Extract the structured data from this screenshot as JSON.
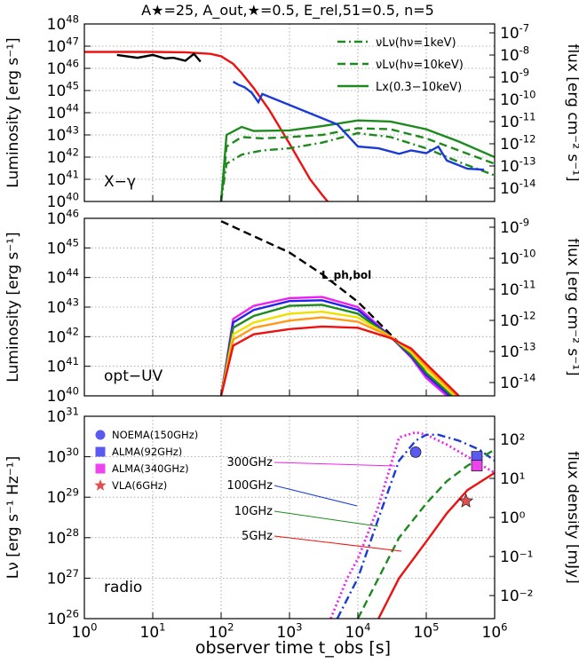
{
  "title": "A★=25, A_out,★=0.5, E_rel,51=0.5, n=5",
  "xlabel": "observer time t_obs [s]",
  "x_tick_exponents": [
    "0",
    "1",
    "2",
    "3",
    "4",
    "5",
    "6"
  ],
  "panels": [
    {
      "id": "xray",
      "label": "X−γ",
      "ylabel": "Luminosity [erg s⁻¹]",
      "y2label": "flux [erg cm⁻² s⁻¹]",
      "y_exps": [
        40,
        41,
        42,
        43,
        44,
        45,
        46,
        47,
        48
      ],
      "y2_exps": [
        "-14",
        "-13",
        "-12",
        "-11",
        "-10",
        "-9",
        "-8",
        "-7"
      ],
      "legend": [
        {
          "label": "νLν(hν=1keV)",
          "style": "dashdot",
          "color": "#1e8a1e"
        },
        {
          "label": "νLν(hν=10keV)",
          "style": "dash",
          "color": "#1e8a1e"
        },
        {
          "label": "Lx(0.3−10keV)",
          "style": "solid",
          "color": "#1e8a1e"
        }
      ]
    },
    {
      "id": "optuv",
      "label": "opt−UV",
      "ylabel": "Luminosity [erg s⁻¹]",
      "y2label": "flux [erg cm⁻² s⁻¹]",
      "y_exps": [
        40,
        41,
        42,
        43,
        44,
        45,
        46
      ],
      "y2_exps": [
        "-14",
        "-13",
        "-12",
        "-11",
        "-10",
        "-9"
      ],
      "annotation": "L_ph,bol"
    },
    {
      "id": "radio",
      "label": "radio",
      "ylabel": "Lν [erg s⁻¹ Hz⁻¹]",
      "y2label": "flux density [mJy]",
      "y_exps": [
        26,
        27,
        28,
        29,
        30,
        31
      ],
      "y2_ticks": [
        "10⁻²",
        "10⁻¹",
        "10⁰",
        "10¹",
        "10²"
      ],
      "freq_labels": [
        "300GHz",
        "100GHz",
        "10GHz",
        "5GHz"
      ],
      "legend": [
        {
          "label": "NOEMA(150GHz)",
          "marker": "circle",
          "color": "#5a5af0"
        },
        {
          "label": "ALMA(92GHz)",
          "marker": "square",
          "color": "#5a5af0"
        },
        {
          "label": "ALMA(340GHz)",
          "marker": "square",
          "color": "#ee44ee"
        },
        {
          "label": "VLA(6GHz)",
          "marker": "star",
          "color": "#e05050"
        }
      ]
    }
  ],
  "chart_data": [
    {
      "type": "line",
      "panel": "X−γ",
      "xscale": "log",
      "yscale": "log",
      "xlim": [
        1,
        1000000
      ],
      "ylim": [
        1e+40,
        1e+48
      ],
      "series": [
        {
          "name": "model (red)",
          "color": "#ee1111",
          "x": [
            1,
            10,
            30,
            70,
            100,
            150,
            200,
            300,
            500,
            1000,
            2000,
            3000,
            5000
          ],
          "y": [
            5.5e+46,
            5.5e+46,
            5.3e+46,
            4.5e+46,
            3.5e+46,
            1.6e+46,
            6e+45,
            1.3e+45,
            1.4e+44,
            4e+42,
            1e+41,
            2e+40,
            3e+39
          ]
        },
        {
          "name": "νLν(hν=1keV)",
          "color": "#1e8a1e",
          "dash": "dashdot",
          "x": [
            100,
            120,
            200,
            400,
            1000,
            3000,
            10000,
            30000,
            100000,
            300000,
            1000000
          ],
          "y": [
            1e+40,
            5e+41,
            1.3e+42,
            2e+42,
            2.5e+42,
            4.5e+42,
            1.2e+43,
            8e+42,
            2.5e+42,
            6e+41,
            1.5e+41
          ]
        },
        {
          "name": "νLν(hν=10keV)",
          "color": "#1e8a1e",
          "dash": "dash",
          "x": [
            100,
            120,
            200,
            400,
            1000,
            3000,
            10000,
            30000,
            100000,
            300000,
            1000000
          ],
          "y": [
            1e+40,
            3e+42,
            8e+42,
            7e+42,
            8e+42,
            1e+43,
            2e+43,
            1.8e+43,
            7e+42,
            2e+42,
            5e+41
          ]
        },
        {
          "name": "Lx(0.3−10keV)",
          "color": "#1e8a1e",
          "dash": "solid",
          "x": [
            100,
            120,
            200,
            300,
            1000,
            3000,
            10000,
            30000,
            100000,
            300000,
            1000000
          ],
          "y": [
            1e+40,
            1e+43,
            2.3e+43,
            1.5e+43,
            1.6e+43,
            2.5e+43,
            4.5e+43,
            4e+43,
            1.8e+43,
            5e+42,
            1e+42
          ]
        },
        {
          "name": "XRT data (blue)",
          "color": "#1a3ad6",
          "x": [
            150,
            180,
            220,
            280,
            350,
            400,
            5000,
            10000,
            20000,
            40000,
            60000,
            100000,
            150000,
            200000,
            400000,
            700000
          ],
          "y": [
            2.5e+45,
            1.8e+45,
            1.4e+45,
            8e+44,
            3e+44,
            7e+44,
            3e+43,
            3e+42,
            2.5e+42,
            1.4e+42,
            2e+42,
            1.5e+42,
            3e+42,
            7e+41,
            3e+41,
            2.7e+41
          ]
        },
        {
          "name": "BAT data (black)",
          "color": "#000000",
          "x": [
            3,
            6,
            10,
            15,
            20,
            30,
            40,
            50
          ],
          "y": [
            4e+46,
            3e+46,
            4e+46,
            2.8e+46,
            3e+46,
            2.2e+46,
            4.5e+46,
            2e+46
          ]
        }
      ]
    },
    {
      "type": "line",
      "panel": "opt−UV",
      "xscale": "log",
      "yscale": "log",
      "xlim": [
        1,
        1000000
      ],
      "ylim": [
        1e+40,
        1e+46
      ],
      "series": [
        {
          "name": "L_ph,bol",
          "color": "#000000",
          "dash": "dash",
          "x": [
            100,
            300,
            1000,
            3000,
            10000,
            30000,
            100000,
            300000
          ],
          "y": [
            8e+45,
            2.5e+45,
            7e+44,
            1.3e+44,
            1.5e+43,
            1.2e+42,
            8e+40,
            1e+40
          ]
        },
        {
          "name": "magenta",
          "color": "#ee22ee",
          "x": [
            100,
            150,
            300,
            1000,
            3000,
            10000,
            30000,
            60000,
            100000,
            200000
          ],
          "y": [
            1e+40,
            4e+42,
            1.1e+43,
            2e+43,
            2.2e+43,
            1e+43,
            1e+42,
            2e+41,
            4e+40,
            1e+40
          ]
        },
        {
          "name": "blue",
          "color": "#2222ee",
          "x": [
            100,
            150,
            300,
            1000,
            3000,
            10000,
            30000,
            60000,
            100000,
            220000
          ],
          "y": [
            1e+40,
            3e+42,
            8e+42,
            1.6e+43,
            1.7e+43,
            8e+42,
            1e+42,
            2.2e+41,
            5e+40,
            1e+40
          ]
        },
        {
          "name": "green",
          "color": "#1e8a1e",
          "x": [
            100,
            150,
            300,
            1000,
            3000,
            10000,
            30000,
            60000,
            100000,
            240000
          ],
          "y": [
            1e+40,
            2e+42,
            5e+42,
            1.1e+43,
            1.2e+43,
            6e+42,
            1e+42,
            2.5e+41,
            6e+40,
            1e+40
          ]
        },
        {
          "name": "yellow",
          "color": "#f0e000",
          "x": [
            100,
            150,
            300,
            1000,
            3000,
            10000,
            30000,
            60000,
            100000,
            260000
          ],
          "y": [
            1e+40,
            1.2e+42,
            3e+42,
            6e+42,
            7e+42,
            4.5e+42,
            1e+42,
            3e+41,
            8e+40,
            1e+40
          ]
        },
        {
          "name": "orange",
          "color": "#ff9a1a",
          "x": [
            100,
            150,
            300,
            1000,
            3000,
            10000,
            30000,
            60000,
            100000,
            280000
          ],
          "y": [
            1e+40,
            8e+41,
            2e+42,
            3.5e+42,
            4.5e+42,
            3.2e+42,
            1e+42,
            3.5e+41,
            1e+41,
            1e+40
          ]
        },
        {
          "name": "red",
          "color": "#ee1111",
          "x": [
            100,
            150,
            300,
            1000,
            3000,
            10000,
            30000,
            60000,
            100000,
            300000
          ],
          "y": [
            1e+40,
            5e+41,
            1.2e+42,
            1.8e+42,
            2.2e+42,
            2e+42,
            9e+41,
            4e+41,
            1.2e+41,
            1e+40
          ]
        }
      ]
    },
    {
      "type": "line",
      "panel": "radio",
      "xscale": "log",
      "yscale": "log",
      "xlim": [
        1,
        1000000
      ],
      "ylim": [
        1e+26,
        1e+31
      ],
      "series": [
        {
          "name": "300GHz",
          "color": "#ee22ee",
          "dash": "dot",
          "x": [
            4000,
            7000,
            10000,
            20000,
            40000,
            70000,
            100000,
            200000,
            500000,
            1000000
          ],
          "y": [
            1e+26,
            1e+27,
            3e+27,
            6e+28,
            3e+30,
            4e+30,
            3.5e+30,
            2e+30,
            8e+29,
            4e+29
          ]
        },
        {
          "name": "100GHz",
          "color": "#1a3ad6",
          "dash": "dashdot",
          "x": [
            5000,
            10000,
            20000,
            40000,
            70000,
            100000,
            150000,
            300000,
            600000,
            1000000
          ],
          "y": [
            1e+26,
            1e+27,
            3e+28,
            8e+29,
            2.5e+30,
            3.5e+30,
            3.5e+30,
            2.5e+30,
            1.5e+30,
            8e+29
          ]
        },
        {
          "name": "10GHz",
          "color": "#1e8a1e",
          "dash": "dash",
          "x": [
            10000,
            20000,
            40000,
            100000,
            200000,
            400000,
            1000000
          ],
          "y": [
            1e+26,
            1e+27,
            1e+28,
            7e+28,
            2.5e+29,
            6e+29,
            1.5e+30
          ]
        },
        {
          "name": "5GHz",
          "color": "#ee1111",
          "dash": "solid",
          "x": [
            20000,
            40000,
            100000,
            200000,
            400000,
            1000000
          ],
          "y": [
            1e+26,
            1e+27,
            8e+27,
            4e+28,
            1.5e+29,
            4e+29
          ]
        }
      ],
      "points": [
        {
          "name": "NOEMA(150GHz)",
          "marker": "circle",
          "color": "#5a5af0",
          "x": 70000,
          "y": 1.3e+30
        },
        {
          "name": "ALMA(92GHz)",
          "marker": "square",
          "color": "#5a5af0",
          "x": 550000,
          "y": 1e+30
        },
        {
          "name": "ALMA(340GHz)",
          "marker": "square",
          "color": "#ee44ee",
          "x": 550000,
          "y": 6e+29
        },
        {
          "name": "VLA(6GHz)",
          "marker": "star",
          "color": "#e05050",
          "x": 380000,
          "y": 8e+28
        }
      ]
    }
  ]
}
